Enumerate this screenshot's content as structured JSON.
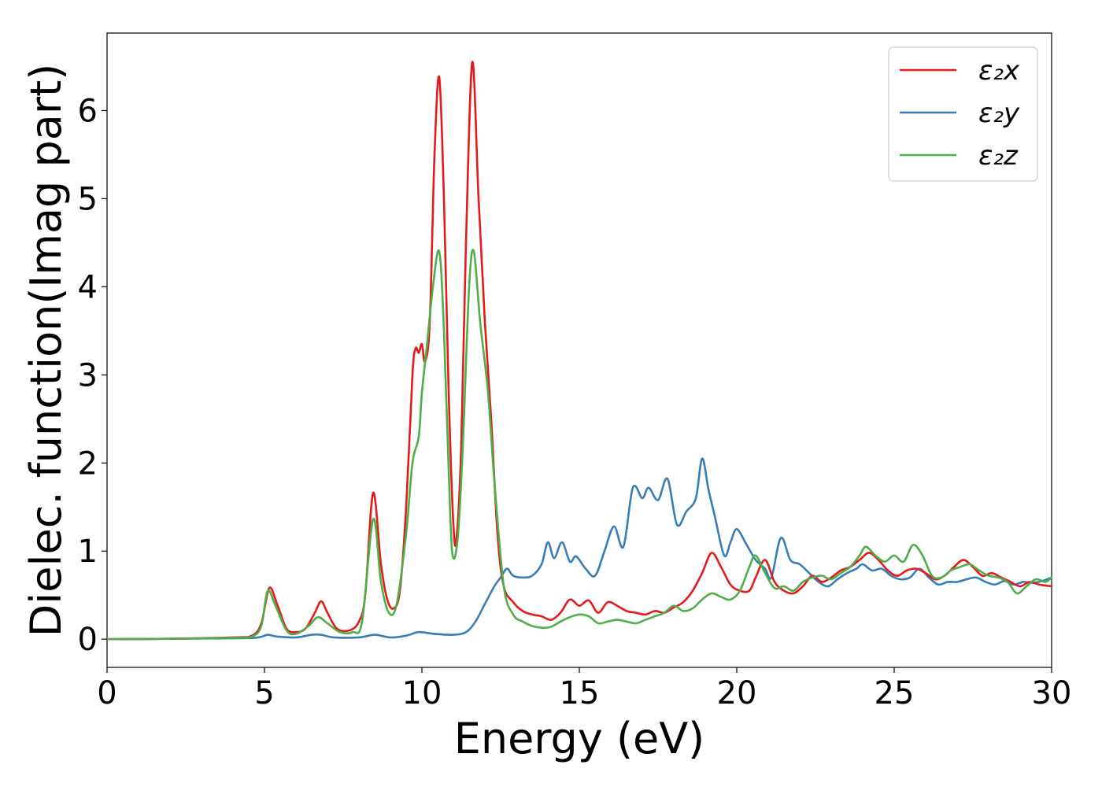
{
  "chart_data": {
    "type": "line",
    "title": "",
    "xlabel": "Energy (eV)",
    "ylabel": "Dielec. function(Imag part)",
    "xlim": [
      0,
      30
    ],
    "ylim": [
      -0.32,
      6.88
    ],
    "xticks": [
      0,
      5,
      10,
      15,
      20,
      25,
      30
    ],
    "xtick_labels": [
      "0",
      "5",
      "10",
      "15",
      "20",
      "25",
      "30"
    ],
    "yticks": [
      0,
      1,
      2,
      3,
      4,
      5,
      6
    ],
    "ytick_labels": [
      "0",
      "1",
      "2",
      "3",
      "4",
      "5",
      "6"
    ],
    "grid": false,
    "legend_position": "top-right",
    "series": [
      {
        "name": "ε₂x",
        "color": "#e41a1c",
        "points": [
          [
            0,
            0
          ],
          [
            2,
            0.005
          ],
          [
            4,
            0.02
          ],
          [
            4.6,
            0.04
          ],
          [
            4.9,
            0.18
          ],
          [
            5.15,
            0.58
          ],
          [
            5.4,
            0.4
          ],
          [
            5.7,
            0.12
          ],
          [
            6.0,
            0.08
          ],
          [
            6.3,
            0.12
          ],
          [
            6.6,
            0.3
          ],
          [
            6.8,
            0.43
          ],
          [
            7.0,
            0.3
          ],
          [
            7.3,
            0.12
          ],
          [
            7.7,
            0.1
          ],
          [
            8.0,
            0.2
          ],
          [
            8.2,
            0.5
          ],
          [
            8.45,
            1.66
          ],
          [
            8.7,
            0.85
          ],
          [
            8.9,
            0.45
          ],
          [
            9.1,
            0.35
          ],
          [
            9.3,
            0.55
          ],
          [
            9.5,
            1.5
          ],
          [
            9.7,
            3.0
          ],
          [
            9.8,
            3.3
          ],
          [
            9.9,
            3.25
          ],
          [
            10.0,
            3.35
          ],
          [
            10.1,
            3.15
          ],
          [
            10.25,
            3.6
          ],
          [
            10.4,
            5.5
          ],
          [
            10.55,
            6.38
          ],
          [
            10.7,
            5.0
          ],
          [
            10.85,
            2.8
          ],
          [
            11.0,
            1.3
          ],
          [
            11.1,
            1.15
          ],
          [
            11.25,
            2.2
          ],
          [
            11.4,
            4.5
          ],
          [
            11.6,
            6.55
          ],
          [
            11.8,
            5.0
          ],
          [
            12.0,
            3.6
          ],
          [
            12.2,
            2.5
          ],
          [
            12.4,
            1.2
          ],
          [
            12.6,
            0.6
          ],
          [
            12.9,
            0.42
          ],
          [
            13.2,
            0.32
          ],
          [
            13.5,
            0.28
          ],
          [
            13.8,
            0.26
          ],
          [
            14.1,
            0.22
          ],
          [
            14.4,
            0.3
          ],
          [
            14.7,
            0.45
          ],
          [
            15.0,
            0.38
          ],
          [
            15.3,
            0.44
          ],
          [
            15.6,
            0.3
          ],
          [
            15.9,
            0.42
          ],
          [
            16.2,
            0.38
          ],
          [
            16.5,
            0.32
          ],
          [
            16.8,
            0.3
          ],
          [
            17.1,
            0.28
          ],
          [
            17.4,
            0.32
          ],
          [
            17.7,
            0.3
          ],
          [
            18.0,
            0.36
          ],
          [
            18.3,
            0.42
          ],
          [
            18.6,
            0.55
          ],
          [
            18.9,
            0.75
          ],
          [
            19.2,
            0.98
          ],
          [
            19.5,
            0.82
          ],
          [
            19.8,
            0.62
          ],
          [
            20.1,
            0.55
          ],
          [
            20.4,
            0.55
          ],
          [
            20.6,
            0.7
          ],
          [
            20.9,
            0.9
          ],
          [
            21.2,
            0.65
          ],
          [
            21.5,
            0.55
          ],
          [
            21.8,
            0.52
          ],
          [
            22.1,
            0.6
          ],
          [
            22.4,
            0.72
          ],
          [
            22.7,
            0.65
          ],
          [
            23.0,
            0.7
          ],
          [
            23.3,
            0.78
          ],
          [
            23.6,
            0.82
          ],
          [
            23.9,
            0.9
          ],
          [
            24.2,
            0.98
          ],
          [
            24.5,
            0.9
          ],
          [
            24.8,
            0.78
          ],
          [
            25.1,
            0.72
          ],
          [
            25.4,
            0.78
          ],
          [
            25.7,
            0.8
          ],
          [
            26.0,
            0.75
          ],
          [
            26.3,
            0.68
          ],
          [
            26.6,
            0.72
          ],
          [
            26.9,
            0.82
          ],
          [
            27.2,
            0.9
          ],
          [
            27.5,
            0.82
          ],
          [
            27.8,
            0.72
          ],
          [
            28.1,
            0.75
          ],
          [
            28.4,
            0.7
          ],
          [
            28.7,
            0.65
          ],
          [
            29.0,
            0.6
          ],
          [
            29.3,
            0.65
          ],
          [
            29.6,
            0.62
          ],
          [
            30,
            0.6
          ]
        ]
      },
      {
        "name": "ε₂y",
        "color": "#377eb8",
        "points": [
          [
            0,
            0
          ],
          [
            4,
            0.01
          ],
          [
            4.8,
            0.02
          ],
          [
            5.1,
            0.05
          ],
          [
            5.4,
            0.03
          ],
          [
            6.0,
            0.02
          ],
          [
            6.5,
            0.05
          ],
          [
            6.8,
            0.05
          ],
          [
            7.2,
            0.02
          ],
          [
            8.0,
            0.02
          ],
          [
            8.5,
            0.05
          ],
          [
            9.0,
            0.02
          ],
          [
            9.5,
            0.04
          ],
          [
            9.9,
            0.08
          ],
          [
            10.4,
            0.06
          ],
          [
            11.0,
            0.05
          ],
          [
            11.4,
            0.08
          ],
          [
            11.7,
            0.2
          ],
          [
            12.0,
            0.4
          ],
          [
            12.3,
            0.6
          ],
          [
            12.5,
            0.7
          ],
          [
            12.7,
            0.8
          ],
          [
            12.9,
            0.72
          ],
          [
            13.2,
            0.7
          ],
          [
            13.5,
            0.72
          ],
          [
            13.8,
            0.85
          ],
          [
            14.0,
            1.1
          ],
          [
            14.2,
            0.92
          ],
          [
            14.45,
            1.1
          ],
          [
            14.7,
            0.88
          ],
          [
            14.9,
            0.94
          ],
          [
            15.2,
            0.8
          ],
          [
            15.5,
            0.72
          ],
          [
            15.8,
            1.0
          ],
          [
            16.1,
            1.28
          ],
          [
            16.4,
            1.05
          ],
          [
            16.7,
            1.72
          ],
          [
            17.0,
            1.6
          ],
          [
            17.2,
            1.72
          ],
          [
            17.5,
            1.58
          ],
          [
            17.8,
            1.82
          ],
          [
            18.1,
            1.3
          ],
          [
            18.4,
            1.45
          ],
          [
            18.7,
            1.6
          ],
          [
            18.9,
            2.05
          ],
          [
            19.1,
            1.7
          ],
          [
            19.3,
            1.4
          ],
          [
            19.6,
            0.95
          ],
          [
            19.8,
            1.1
          ],
          [
            20.0,
            1.25
          ],
          [
            20.3,
            1.08
          ],
          [
            20.6,
            0.9
          ],
          [
            20.9,
            0.8
          ],
          [
            21.1,
            0.7
          ],
          [
            21.4,
            1.15
          ],
          [
            21.7,
            0.9
          ],
          [
            22.0,
            0.85
          ],
          [
            22.3,
            0.75
          ],
          [
            22.6,
            0.65
          ],
          [
            22.9,
            0.6
          ],
          [
            23.2,
            0.68
          ],
          [
            23.5,
            0.75
          ],
          [
            23.8,
            0.8
          ],
          [
            24.0,
            0.85
          ],
          [
            24.3,
            0.78
          ],
          [
            24.6,
            0.8
          ],
          [
            24.9,
            0.72
          ],
          [
            25.2,
            0.68
          ],
          [
            25.5,
            0.7
          ],
          [
            25.8,
            0.8
          ],
          [
            26.1,
            0.7
          ],
          [
            26.4,
            0.62
          ],
          [
            26.7,
            0.65
          ],
          [
            27.0,
            0.65
          ],
          [
            27.3,
            0.68
          ],
          [
            27.6,
            0.7
          ],
          [
            27.9,
            0.65
          ],
          [
            28.2,
            0.62
          ],
          [
            28.5,
            0.66
          ],
          [
            28.8,
            0.62
          ],
          [
            29.1,
            0.65
          ],
          [
            29.4,
            0.64
          ],
          [
            29.7,
            0.66
          ],
          [
            30,
            0.7
          ]
        ]
      },
      {
        "name": "ε₂z",
        "color": "#4daf4a",
        "points": [
          [
            0,
            0
          ],
          [
            2,
            0.005
          ],
          [
            4,
            0.015
          ],
          [
            4.6,
            0.03
          ],
          [
            4.9,
            0.15
          ],
          [
            5.1,
            0.55
          ],
          [
            5.35,
            0.38
          ],
          [
            5.7,
            0.1
          ],
          [
            6.0,
            0.06
          ],
          [
            6.4,
            0.15
          ],
          [
            6.7,
            0.25
          ],
          [
            7.0,
            0.18
          ],
          [
            7.4,
            0.08
          ],
          [
            7.8,
            0.08
          ],
          [
            8.1,
            0.2
          ],
          [
            8.45,
            1.36
          ],
          [
            8.7,
            0.65
          ],
          [
            8.95,
            0.3
          ],
          [
            9.2,
            0.4
          ],
          [
            9.5,
            1.2
          ],
          [
            9.7,
            2.0
          ],
          [
            9.9,
            2.3
          ],
          [
            10.0,
            2.8
          ],
          [
            10.15,
            3.3
          ],
          [
            10.35,
            4.0
          ],
          [
            10.55,
            4.4
          ],
          [
            10.7,
            3.5
          ],
          [
            10.9,
            1.4
          ],
          [
            11.0,
            0.92
          ],
          [
            11.15,
            1.2
          ],
          [
            11.3,
            2.2
          ],
          [
            11.5,
            4.0
          ],
          [
            11.65,
            4.4
          ],
          [
            11.85,
            3.6
          ],
          [
            12.1,
            2.8
          ],
          [
            12.3,
            1.8
          ],
          [
            12.6,
            0.6
          ],
          [
            12.9,
            0.28
          ],
          [
            13.2,
            0.2
          ],
          [
            13.5,
            0.15
          ],
          [
            13.8,
            0.13
          ],
          [
            14.1,
            0.14
          ],
          [
            14.4,
            0.2
          ],
          [
            14.7,
            0.25
          ],
          [
            15.0,
            0.28
          ],
          [
            15.3,
            0.26
          ],
          [
            15.6,
            0.18
          ],
          [
            15.9,
            0.2
          ],
          [
            16.2,
            0.22
          ],
          [
            16.5,
            0.2
          ],
          [
            16.8,
            0.18
          ],
          [
            17.1,
            0.22
          ],
          [
            17.4,
            0.26
          ],
          [
            17.7,
            0.3
          ],
          [
            18.0,
            0.38
          ],
          [
            18.3,
            0.32
          ],
          [
            18.6,
            0.35
          ],
          [
            18.9,
            0.45
          ],
          [
            19.2,
            0.52
          ],
          [
            19.5,
            0.48
          ],
          [
            19.8,
            0.45
          ],
          [
            20.1,
            0.55
          ],
          [
            20.4,
            0.82
          ],
          [
            20.6,
            0.95
          ],
          [
            20.9,
            0.75
          ],
          [
            21.2,
            0.58
          ],
          [
            21.5,
            0.6
          ],
          [
            21.8,
            0.55
          ],
          [
            22.1,
            0.65
          ],
          [
            22.4,
            0.7
          ],
          [
            22.7,
            0.72
          ],
          [
            23.0,
            0.68
          ],
          [
            23.3,
            0.75
          ],
          [
            23.6,
            0.82
          ],
          [
            23.9,
            0.95
          ],
          [
            24.1,
            1.05
          ],
          [
            24.4,
            0.95
          ],
          [
            24.7,
            0.88
          ],
          [
            25.0,
            0.95
          ],
          [
            25.3,
            0.88
          ],
          [
            25.6,
            1.07
          ],
          [
            25.9,
            0.95
          ],
          [
            26.2,
            0.72
          ],
          [
            26.5,
            0.7
          ],
          [
            26.8,
            0.78
          ],
          [
            27.1,
            0.82
          ],
          [
            27.4,
            0.85
          ],
          [
            27.7,
            0.78
          ],
          [
            28.0,
            0.72
          ],
          [
            28.3,
            0.7
          ],
          [
            28.6,
            0.65
          ],
          [
            28.9,
            0.52
          ],
          [
            29.2,
            0.6
          ],
          [
            29.5,
            0.68
          ],
          [
            29.8,
            0.65
          ],
          [
            30,
            0.7
          ]
        ]
      }
    ]
  }
}
